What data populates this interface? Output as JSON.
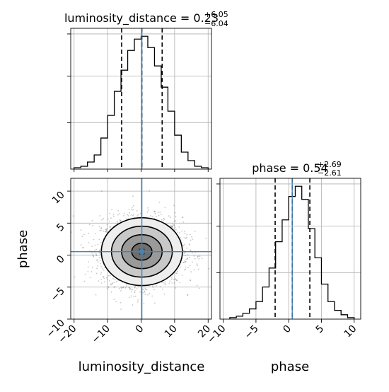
{
  "chart_data": {
    "type": "corner",
    "parameters": [
      "luminosity_distance",
      "phase"
    ],
    "truth": {
      "luminosity_distance": 0.23,
      "phase": 0.54
    },
    "colors": {
      "truth": "#4682b4",
      "hist": "#000000",
      "grid": "#b0b0b0",
      "quantile": "#000000"
    },
    "grid": true,
    "panels": [
      {
        "kind": "histogram",
        "parameter": "luminosity_distance",
        "title_main": "luminosity_distance = 0.23",
        "title_plus": "+6.05",
        "title_minus": "−6.04",
        "median": 0.23,
        "quantiles": [
          -5.81,
          0.23,
          6.28
        ],
        "xlim": [
          -21,
          21
        ],
        "bins": [
          -20,
          -18,
          -16,
          -14,
          -12,
          -10,
          -8,
          -6,
          -4,
          -2,
          0,
          2,
          4,
          6,
          8,
          10,
          12,
          14,
          16,
          18,
          20
        ],
        "counts": [
          1,
          2,
          5,
          10,
          22,
          38,
          55,
          70,
          84,
          92,
          94,
          86,
          73,
          58,
          41,
          24,
          12,
          6,
          2,
          1
        ]
      },
      {
        "kind": "histogram",
        "parameter": "phase",
        "title_main": "phase = 0.54",
        "title_plus": "+2.69",
        "title_minus": "−2.61",
        "median": 0.54,
        "quantiles": [
          -2.07,
          0.54,
          3.23
        ],
        "xlim": [
          -10.5,
          11
        ],
        "bins": [
          -9,
          -8,
          -7,
          -6,
          -5,
          -4,
          -3,
          -2,
          -1,
          0,
          1,
          2,
          3,
          4,
          5,
          6,
          7,
          8,
          9,
          10
        ],
        "counts": [
          1,
          2,
          4,
          7,
          12,
          22,
          35,
          53,
          68,
          84,
          91,
          82,
          62,
          42,
          24,
          12,
          6,
          3,
          1
        ]
      },
      {
        "kind": "density2d",
        "x_parameter": "luminosity_distance",
        "y_parameter": "phase",
        "xlim": [
          -21,
          21
        ],
        "ylim": [
          -10,
          12
        ],
        "x_mean": 0.23,
        "y_mean": 0.54,
        "x_sigma": 6.05,
        "y_sigma": 2.65,
        "contour_levels_sigma": [
          0.5,
          1,
          1.5,
          2
        ],
        "samples_shown": 2600
      }
    ],
    "axes": {
      "x_label_left": "luminosity_distance",
      "x_label_right": "phase",
      "y_label": "phase",
      "ld_ticks": [
        "−20",
        "−10",
        "0",
        "10",
        "20"
      ],
      "ld_tick_values": [
        -20,
        -10,
        0,
        10,
        20
      ],
      "phase_ticks": [
        "−10",
        "−5",
        "0",
        "5",
        "10"
      ],
      "phase_tick_values": [
        -10,
        -5,
        0,
        5,
        10
      ]
    }
  }
}
